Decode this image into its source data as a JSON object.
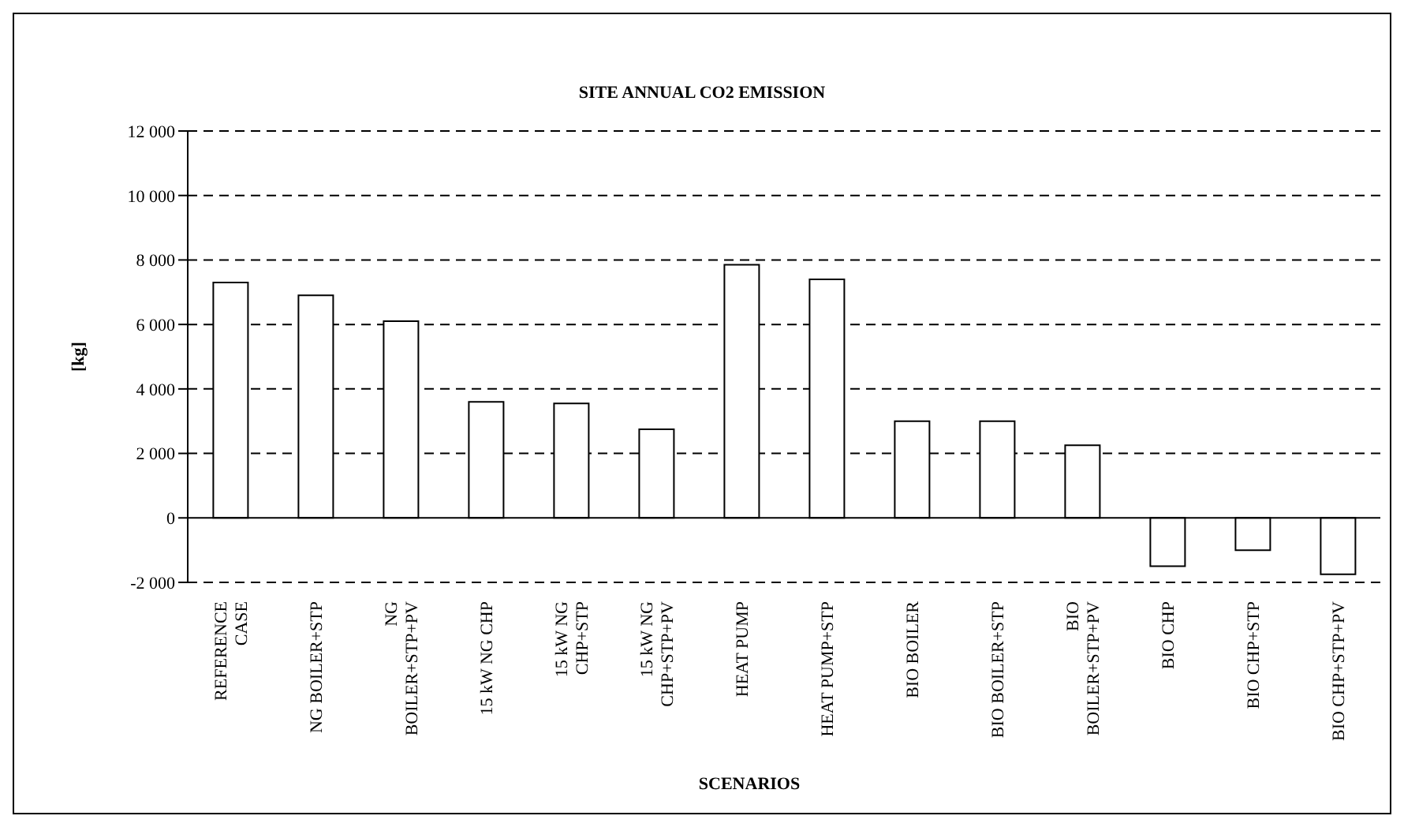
{
  "chart_data": {
    "type": "bar",
    "title": "SITE ANNUAL CO2 EMISSION",
    "xlabel": "SCENARIOS",
    "ylabel": "[kg]",
    "categories": [
      "REFERENCE CASE",
      "NG BOILER+STP",
      "NG BOILER+STP+PV",
      "15 kW NG CHP",
      "15 kW NG CHP+STP",
      "15 kW NG CHP+STP+PV",
      "HEAT PUMP",
      "HEAT PUMP+STP",
      "BIO BOILER",
      "BIO BOILER+STP",
      "BIO BOILER+STP+PV",
      "BIO CHP",
      "BIO CHP+STP",
      "BIO CHP+STP+PV"
    ],
    "series": [
      {
        "color": "#ffffff",
        "values": [
          7300,
          6900,
          6100,
          3600,
          3550,
          2750,
          7850,
          7400,
          3000,
          3000,
          2250,
          -1500,
          -1000,
          -1750
        ]
      }
    ],
    "ylim": [
      -2000,
      12000
    ],
    "yticks": [
      {
        "value": -2000,
        "label": "-2 000"
      },
      0,
      {
        "value": 2000,
        "label": "2 000"
      },
      {
        "value": 4000,
        "label": "4 000"
      },
      {
        "value": 6000,
        "label": "6 000"
      },
      {
        "value": 8000,
        "label": "8 000"
      },
      {
        "value": 10000,
        "label": "10 000"
      },
      {
        "value": 12000,
        "label": "12 000"
      }
    ],
    "grid": "y",
    "line_style": "dashed"
  }
}
